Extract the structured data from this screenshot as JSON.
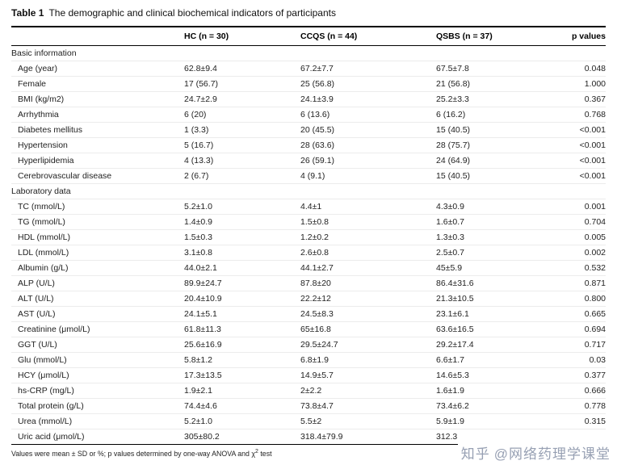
{
  "caption": {
    "label": "Table 1",
    "text": "The demographic and clinical biochemical indicators of participants"
  },
  "table": {
    "columns": [
      "",
      "HC (n = 30)",
      "CCQS (n = 44)",
      "QSBS (n = 37)",
      "p values"
    ],
    "sections": [
      {
        "title": "Basic information",
        "rows": [
          [
            "Age (year)",
            "62.8±9.4",
            "67.2±7.7",
            "67.5±7.8",
            "0.048"
          ],
          [
            "Female",
            "17 (56.7)",
            "25 (56.8)",
            "21 (56.8)",
            "1.000"
          ],
          [
            "BMI (kg/m2)",
            "24.7±2.9",
            "24.1±3.9",
            "25.2±3.3",
            "0.367"
          ],
          [
            "Arrhythmia",
            "6 (20)",
            "6 (13.6)",
            "6 (16.2)",
            "0.768"
          ],
          [
            "Diabetes mellitus",
            "1 (3.3)",
            "20 (45.5)",
            "15 (40.5)",
            "<0.001"
          ],
          [
            "Hypertension",
            "5 (16.7)",
            "28 (63.6)",
            "28 (75.7)",
            "<0.001"
          ],
          [
            "Hyperlipidemia",
            "4 (13.3)",
            "26 (59.1)",
            "24 (64.9)",
            "<0.001"
          ],
          [
            "Cerebrovascular disease",
            "2 (6.7)",
            "4 (9.1)",
            "15 (40.5)",
            "<0.001"
          ]
        ]
      },
      {
        "title": "Laboratory data",
        "rows": [
          [
            "TC (mmol/L)",
            "5.2±1.0",
            "4.4±1",
            "4.3±0.9",
            "0.001"
          ],
          [
            "TG (mmol/L)",
            "1.4±0.9",
            "1.5±0.8",
            "1.6±0.7",
            "0.704"
          ],
          [
            "HDL (mmol/L)",
            "1.5±0.3",
            "1.2±0.2",
            "1.3±0.3",
            "0.005"
          ],
          [
            "LDL (mmol/L)",
            "3.1±0.8",
            "2.6±0.8",
            "2.5±0.7",
            "0.002"
          ],
          [
            "Albumin (g/L)",
            "44.0±2.1",
            "44.1±2.7",
            "45±5.9",
            "0.532"
          ],
          [
            "ALP (U/L)",
            "89.9±24.7",
            "87.8±20",
            "86.4±31.6",
            "0.871"
          ],
          [
            "ALT (U/L)",
            "20.4±10.9",
            "22.2±12",
            "21.3±10.5",
            "0.800"
          ],
          [
            "AST (U/L)",
            "24.1±5.1",
            "24.5±8.3",
            "23.1±6.1",
            "0.665"
          ],
          [
            "Creatinine (μmol/L)",
            "61.8±11.3",
            "65±16.8",
            "63.6±16.5",
            "0.694"
          ],
          [
            "GGT (U/L)",
            "25.6±16.9",
            "29.5±24.7",
            "29.2±17.4",
            "0.717"
          ],
          [
            "Glu (mmol/L)",
            "5.8±1.2",
            "6.8±1.9",
            "6.6±1.7",
            "0.03"
          ],
          [
            "HCY (μmol/L)",
            "17.3±13.5",
            "14.9±5.7",
            "14.6±5.3",
            "0.377"
          ],
          [
            "hs-CRP (mg/L)",
            "1.9±2.1",
            "2±2.2",
            "1.6±1.9",
            "0.666"
          ],
          [
            "Total protein (g/L)",
            "74.4±4.6",
            "73.8±4.7",
            "73.4±6.2",
            "0.778"
          ],
          [
            "Urea (mmol/L)",
            "5.2±1.0",
            "5.5±2",
            "5.9±1.9",
            "0.315"
          ],
          [
            "Uric acid (μmol/L)",
            "305±80.2",
            "318.4±79.9",
            "312.3",
            ""
          ]
        ]
      }
    ]
  },
  "footnote": {
    "pre": "Values were mean ± SD or %; p values determined by one-way ANOVA and χ",
    "sup": "2",
    "post": " test"
  },
  "watermark": {
    "brand": "知乎",
    "handle": "@网络药理学课堂",
    "color": "#97a0b3"
  }
}
